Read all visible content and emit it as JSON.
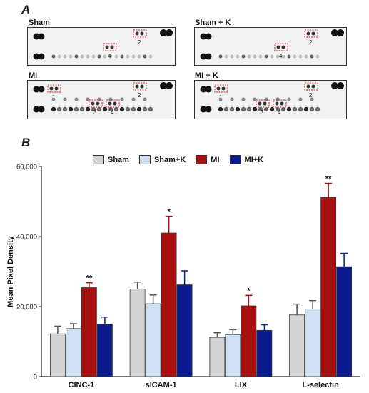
{
  "panel_a_label": "A",
  "panel_b_label": "B",
  "blots": [
    {
      "title": "Sham",
      "highlights": [
        "2",
        "4"
      ]
    },
    {
      "title": "Sham + K",
      "highlights": [
        "2",
        "4"
      ]
    },
    {
      "title": "MI",
      "highlights": [
        "1",
        "2",
        "3",
        "4"
      ]
    },
    {
      "title": "MI + K",
      "highlights": [
        "1",
        "2",
        "3",
        "4"
      ]
    }
  ],
  "colors": {
    "Sham": "#d4d4d4",
    "Sham+K": "#cfe0f5",
    "MI": "#a80f0f",
    "MI+K": "#0b1a8c"
  },
  "chart_data": {
    "type": "bar",
    "ylabel": "Mean Pixel Density",
    "xlabel": "",
    "ylim": [
      0,
      60000
    ],
    "yticks": [
      0,
      20000,
      40000,
      60000
    ],
    "ytick_labels": [
      "0",
      "20,000",
      "40,000",
      "60,000"
    ],
    "categories": [
      "CINC-1",
      "sICAM-1",
      "LIX",
      "L-selectin"
    ],
    "series": [
      {
        "name": "Sham",
        "values": [
          12200,
          25000,
          11200,
          17600
        ],
        "errors": [
          2200,
          2000,
          1300,
          3100
        ]
      },
      {
        "name": "Sham+K",
        "values": [
          13700,
          20800,
          12000,
          19300
        ],
        "errors": [
          1400,
          2500,
          1400,
          2400
        ]
      },
      {
        "name": "MI",
        "values": [
          25400,
          41000,
          20200,
          51200
        ],
        "errors": [
          1400,
          4800,
          3000,
          4000
        ]
      },
      {
        "name": "MI+K",
        "values": [
          15000,
          26200,
          13200,
          31400
        ],
        "errors": [
          2000,
          4000,
          1600,
          3800
        ]
      }
    ],
    "annotations": [
      "**",
      "*",
      "*",
      "**"
    ],
    "legend_position": "top",
    "grid": false
  }
}
